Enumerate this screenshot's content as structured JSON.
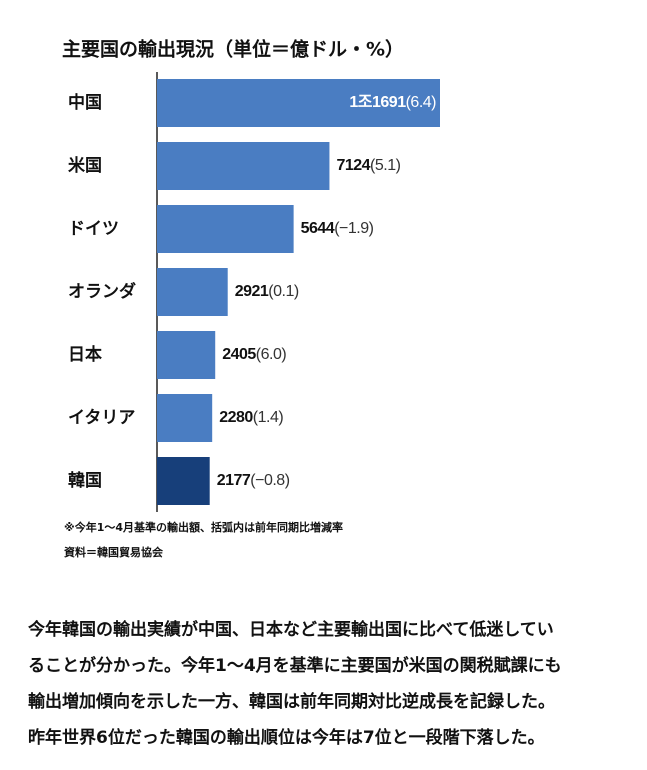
{
  "chart_data": {
    "type": "hbar",
    "title": "主要国の輸出現況（単位＝億ドル・%）",
    "categories": [
      "中国",
      "米国",
      "ドイツ",
      "オランダ",
      "日本",
      "イタリア",
      "韓国"
    ],
    "values": [
      11691,
      7124,
      5644,
      2921,
      2405,
      2280,
      2177
    ],
    "value_labels": [
      "1조1691",
      "7124",
      "5644",
      "2921",
      "2405",
      "2280",
      "2177"
    ],
    "changes": [
      6.4,
      5.1,
      -1.9,
      0.1,
      6.0,
      1.4,
      -0.8
    ],
    "change_labels": [
      "(6.4)",
      "(5.1)",
      "(−1.9)",
      "(0.1)",
      "(6.0)",
      "(1.4)",
      "(−0.8)"
    ],
    "colors": [
      "#4a7dc2",
      "#4a7dc2",
      "#4a7dc2",
      "#4a7dc2",
      "#4a7dc2",
      "#4a7dc2",
      "#173f7a"
    ],
    "notes": [
      "※今年1～4月基準の輸出額、括弧内は前年同期比増減率",
      "資料＝韓国貿易協会"
    ]
  },
  "article": {
    "lines": [
      "今年韓国の輸出実績が中国、日本など主要輸出国に比べて低迷してい",
      "ることが分かった。今年1～4月を基準に主要国が米国の関税賦課にも",
      "輸出増加傾向を示した一方、韓国は前年同期対比逆成長を記録した。",
      "昨年世界6位だった韓国の輸出順位は今年は7位と一段階下落した。"
    ]
  }
}
